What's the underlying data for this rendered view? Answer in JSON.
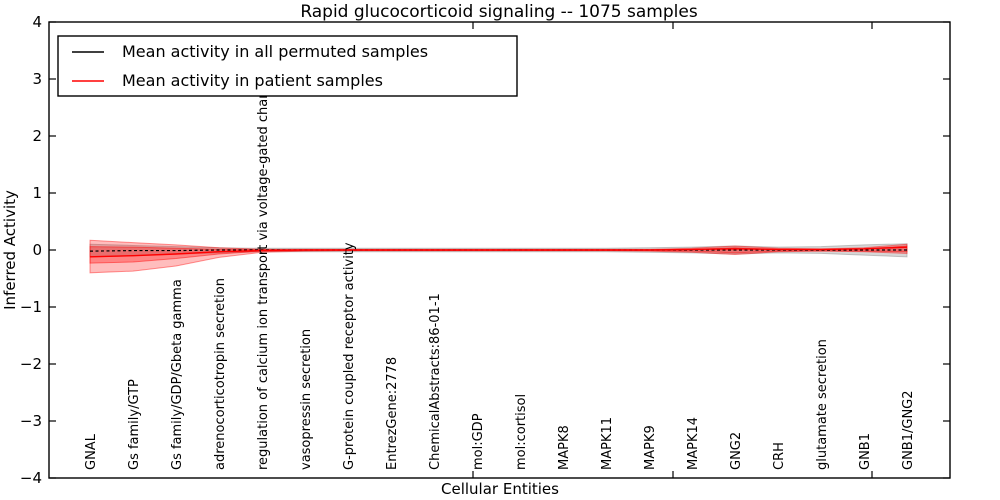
{
  "title": "Rapid glucocorticoid signaling -- 1075 samples",
  "axes": {
    "xlabel": "Cellular Entities",
    "ylabel": "Inferred Activity"
  },
  "legend": {
    "entries": [
      {
        "label": "Mean activity in all permuted samples",
        "color": "#000000"
      },
      {
        "label": "Mean activity in patient samples",
        "color": "#ff0000"
      }
    ]
  },
  "chart_data": {
    "type": "line",
    "title": "Rapid glucocorticoid signaling -- 1075 samples",
    "xlabel": "Cellular Entities",
    "ylabel": "Inferred Activity",
    "ylim": [
      -4,
      4
    ],
    "yticks": [
      4,
      3,
      2,
      1,
      0,
      -1,
      -2,
      -3,
      -4
    ],
    "grid": false,
    "legend_position": "upper left",
    "categories": [
      "GNAL",
      "Gs family/GTP",
      "Gs family/GDP/Gbeta gamma",
      "adrenocorticotropin secretion",
      "regulation of calcium ion transport via voltage-gated channel",
      "vasopressin secretion",
      "G-protein coupled receptor activity",
      "EntrezGene:2778",
      "ChemicalAbstracts:86-01-1",
      "mol:GDP",
      "mol:cortisol",
      "MAPK8",
      "MAPK11",
      "MAPK9",
      "MAPK14",
      "GNG2",
      "CRH",
      "glutamate secretion",
      "GNB1",
      "GNB1/GNG2"
    ],
    "series": [
      {
        "name": "Mean activity in all permuted samples",
        "color": "#000000",
        "style": "dashed",
        "values": [
          -0.02,
          -0.01,
          -0.01,
          0,
          0,
          0,
          0,
          0,
          0,
          0,
          0,
          0,
          0,
          0,
          0,
          0,
          0,
          0,
          0,
          0
        ]
      },
      {
        "name": "Mean activity in patient samples",
        "color": "#ff0000",
        "style": "solid",
        "values": [
          -0.12,
          -0.1,
          -0.07,
          -0.03,
          -0.01,
          0,
          0,
          0,
          0,
          0,
          0,
          0,
          0,
          0,
          0.01,
          0.02,
          0.01,
          0.01,
          0.02,
          0.05
        ]
      }
    ],
    "bands": [
      {
        "name": "permuted-samples-range",
        "color": "#999999",
        "opacity": 0.4,
        "upper": [
          0.1,
          0.08,
          0.06,
          0.04,
          0.03,
          0.03,
          0.03,
          0.03,
          0.03,
          0.03,
          0.03,
          0.03,
          0.03,
          0.04,
          0.05,
          0.07,
          0.05,
          0.06,
          0.09,
          0.11
        ],
        "lower": [
          -0.12,
          -0.1,
          -0.07,
          -0.05,
          -0.03,
          -0.03,
          -0.03,
          -0.03,
          -0.03,
          -0.03,
          -0.03,
          -0.03,
          -0.03,
          -0.04,
          -0.05,
          -0.07,
          -0.05,
          -0.06,
          -0.09,
          -0.12
        ]
      },
      {
        "name": "patient-samples-range-outer",
        "color": "#ff0000",
        "opacity": 0.26,
        "upper": [
          0.17,
          0.13,
          0.09,
          0.04,
          0.01,
          0.01,
          0.01,
          0.01,
          0.01,
          0.01,
          0.01,
          0.01,
          0.01,
          0.01,
          0.03,
          0.07,
          0.03,
          0.02,
          0.04,
          0.1
        ],
        "lower": [
          -0.4,
          -0.37,
          -0.28,
          -0.13,
          -0.04,
          -0.02,
          -0.01,
          -0.01,
          -0.01,
          -0.01,
          -0.01,
          -0.01,
          -0.01,
          -0.02,
          -0.04,
          -0.08,
          -0.03,
          -0.02,
          -0.03,
          -0.06
        ]
      },
      {
        "name": "patient-samples-range-inner",
        "color": "#ff0000",
        "opacity": 0.3,
        "upper": [
          0.06,
          0.05,
          0.03,
          0.01,
          0.01,
          0.005,
          0.005,
          0.005,
          0.005,
          0.005,
          0.005,
          0.005,
          0.005,
          0.005,
          0.01,
          0.04,
          0.01,
          0.01,
          0.02,
          0.07
        ],
        "lower": [
          -0.23,
          -0.21,
          -0.15,
          -0.07,
          -0.02,
          -0.01,
          -0.01,
          -0.01,
          -0.01,
          -0.01,
          -0.01,
          -0.01,
          -0.01,
          -0.01,
          -0.02,
          -0.05,
          -0.02,
          -0.01,
          -0.02,
          -0.03
        ]
      }
    ]
  }
}
